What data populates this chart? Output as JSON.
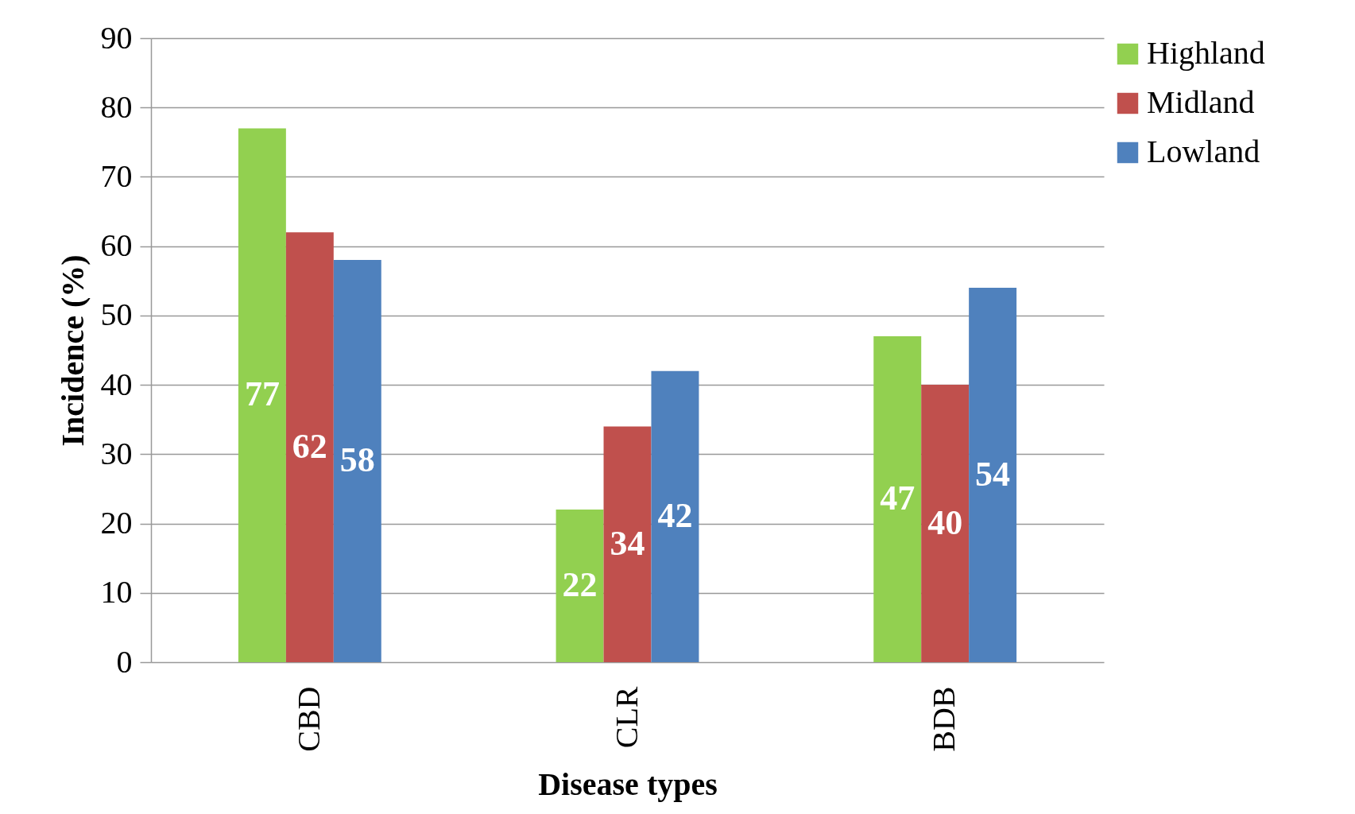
{
  "chart_data": {
    "type": "bar",
    "xlabel": "Disease types",
    "ylabel": "Incidence (%)",
    "categories": [
      "CBD",
      "CLR",
      "BDB"
    ],
    "series": [
      {
        "name": "Highland",
        "color": "#92d050",
        "values": [
          77,
          22,
          47
        ]
      },
      {
        "name": "Midland",
        "color": "#c0504d",
        "values": [
          62,
          34,
          40
        ]
      },
      {
        "name": "Lowland",
        "color": "#4f81bd",
        "values": [
          58,
          42,
          54
        ]
      }
    ],
    "ylim": [
      0,
      90
    ],
    "yticks": [
      0,
      10,
      20,
      30,
      40,
      50,
      60,
      70,
      80,
      90
    ],
    "grid": "y",
    "legend": "right",
    "data_labels": true
  }
}
